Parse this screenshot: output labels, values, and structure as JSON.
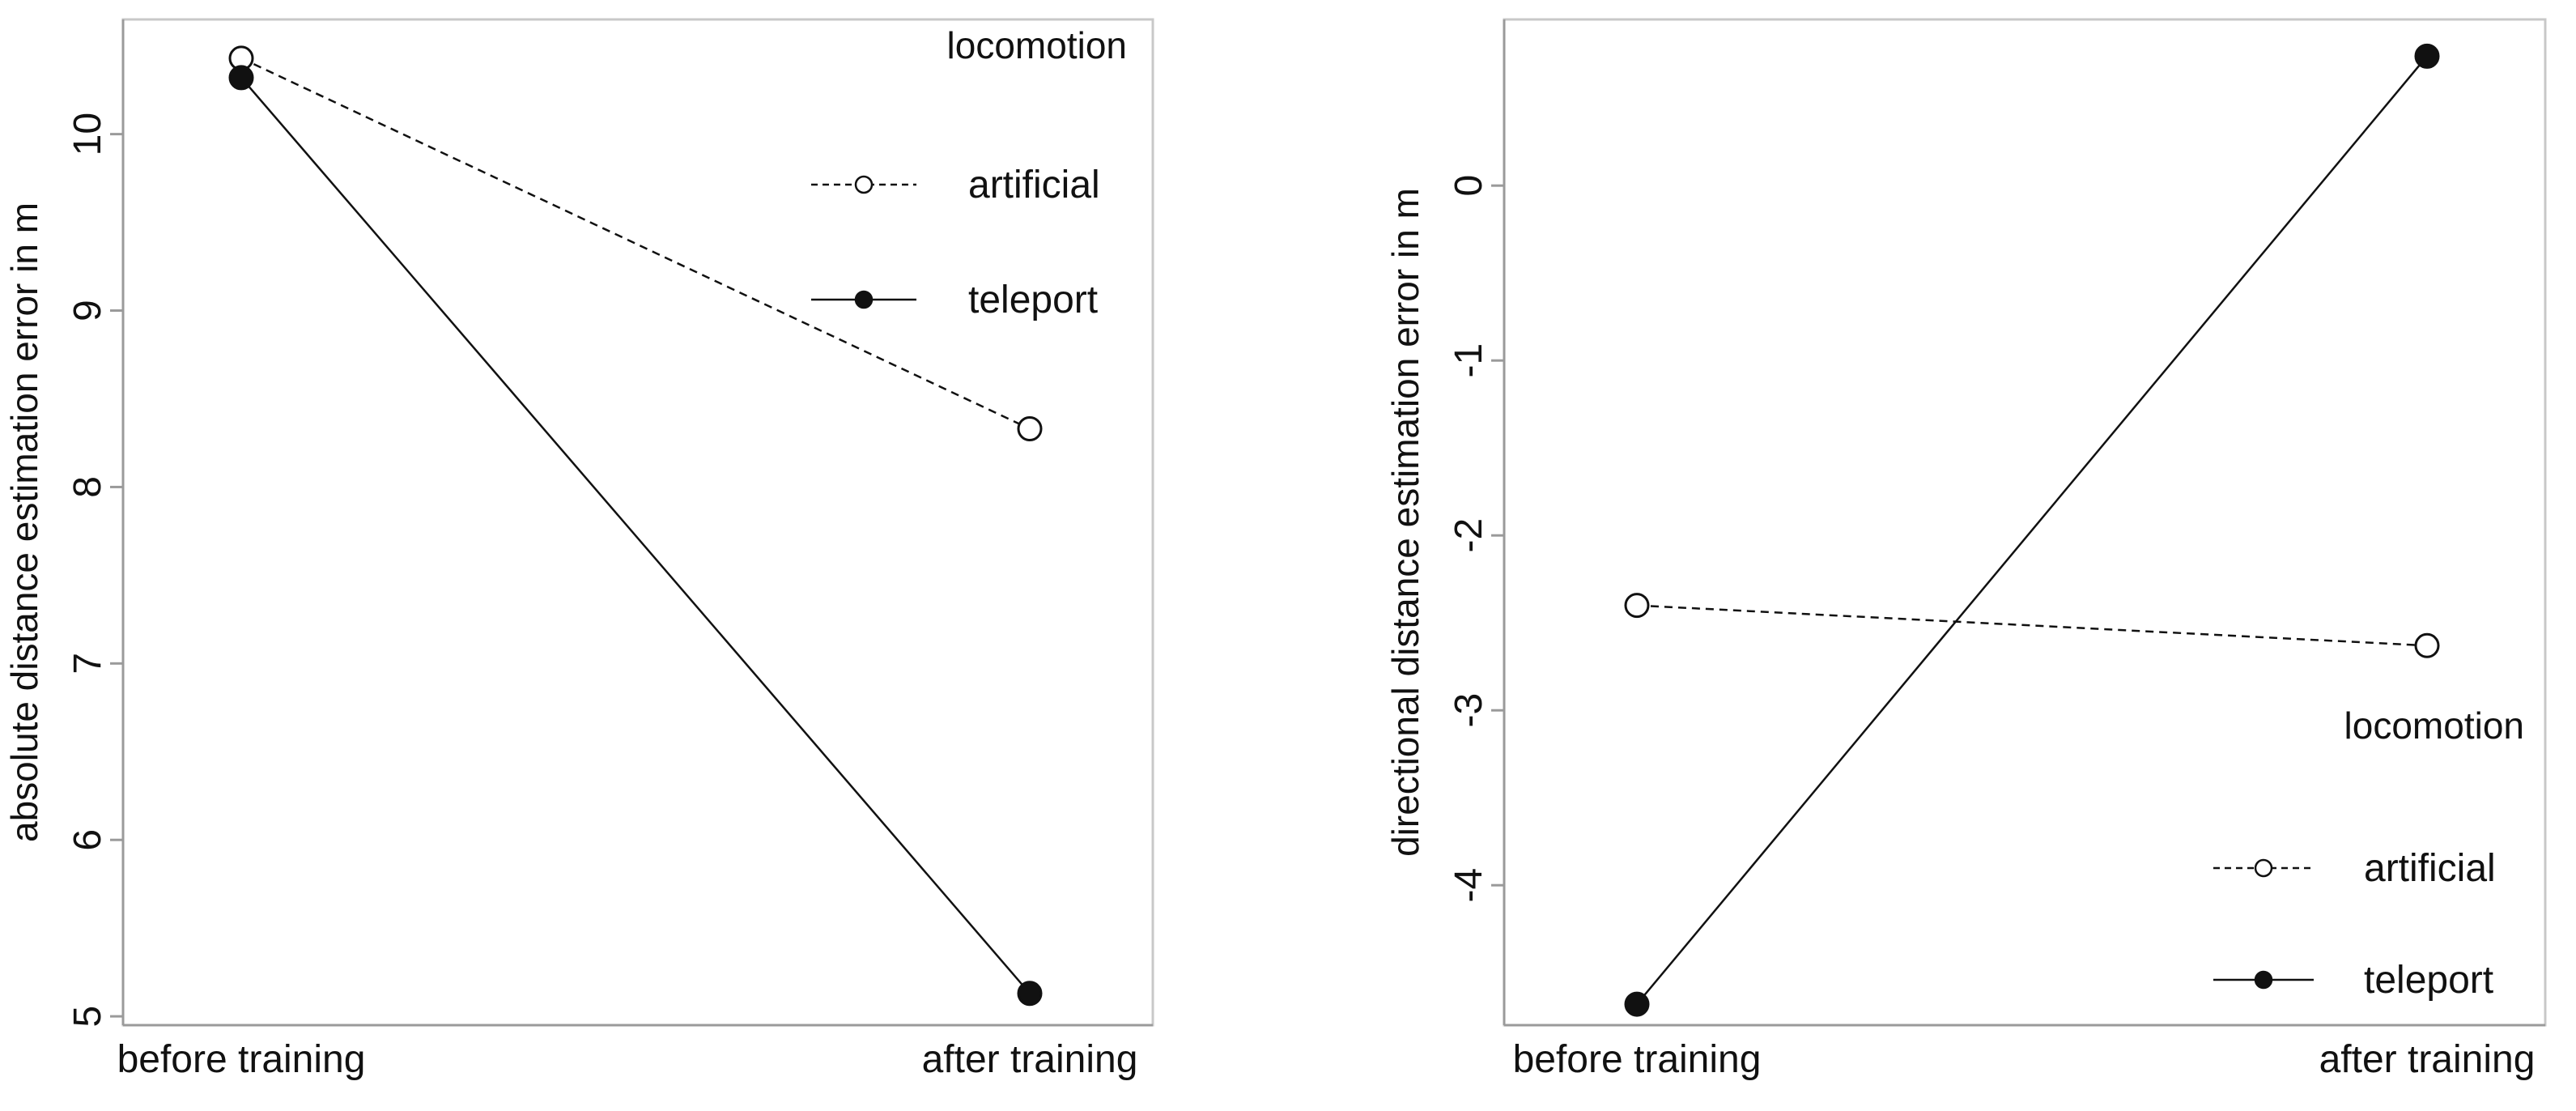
{
  "colors": {
    "line": "#111111",
    "hollow_fill": "#ffffff",
    "frame": "#c8c8c8",
    "axis": "#9a9a9a"
  },
  "chart_data": [
    {
      "type": "line",
      "categories": [
        "before training",
        "after training"
      ],
      "ylabel": "absolute distance estimation error in m",
      "xlabel": "",
      "ylim": [
        4.95,
        10.65
      ],
      "yticks": [
        5,
        6,
        7,
        8,
        9,
        10
      ],
      "grid": false,
      "legend": {
        "title": "locomotion",
        "position": "top-right"
      },
      "series": [
        {
          "name": "artificial",
          "values": [
            10.43,
            8.33
          ],
          "linestyle": "dashed",
          "marker": "hollow-circle"
        },
        {
          "name": "teleport",
          "values": [
            10.32,
            5.13
          ],
          "linestyle": "solid",
          "marker": "filled-circle"
        }
      ]
    },
    {
      "type": "line",
      "categories": [
        "before training",
        "after training"
      ],
      "ylabel": "directional distance estimation error in m",
      "xlabel": "",
      "ylim": [
        -4.8,
        0.95
      ],
      "yticks": [
        -4,
        -3,
        -2,
        -1,
        0
      ],
      "grid": false,
      "legend": {
        "title": "locomotion",
        "position": "bottom-right"
      },
      "series": [
        {
          "name": "artificial",
          "values": [
            -2.4,
            -2.63
          ],
          "linestyle": "dashed",
          "marker": "hollow-circle"
        },
        {
          "name": "teleport",
          "values": [
            -4.68,
            0.74
          ],
          "linestyle": "solid",
          "marker": "filled-circle"
        }
      ]
    }
  ]
}
